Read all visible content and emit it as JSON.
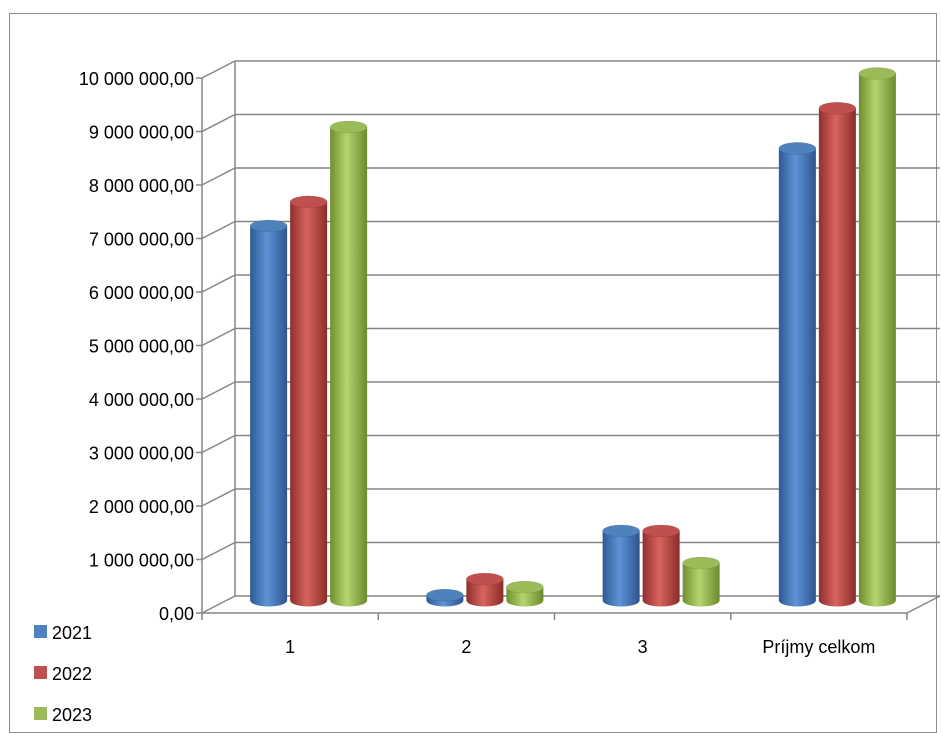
{
  "chart_data": {
    "type": "bar",
    "categories": [
      "1",
      "2",
      "3",
      "Príjmy celkom"
    ],
    "series": [
      {
        "name": "2021",
        "values": [
          7000000,
          100000,
          1300000,
          8450000
        ]
      },
      {
        "name": "2022",
        "values": [
          7450000,
          400000,
          1300000,
          9200000
        ]
      },
      {
        "name": "2023",
        "values": [
          8850000,
          250000,
          700000,
          9850000
        ]
      }
    ],
    "ylim": [
      0,
      10000000
    ],
    "yticks": [
      "0,00",
      "1 000 000,00",
      "2 000 000,00",
      "3 000 000,00",
      "4 000 000,00",
      "5 000 000,00",
      "6 000 000,00",
      "7 000 000,00",
      "8 000 000,00",
      "9 000 000,00",
      "10 000 000,00"
    ],
    "grid": true,
    "legend_position": "bottom-left",
    "colors": [
      "#4f81bd",
      "#c0504d",
      "#9bbb59"
    ],
    "title": "",
    "xlabel": "",
    "ylabel": ""
  }
}
